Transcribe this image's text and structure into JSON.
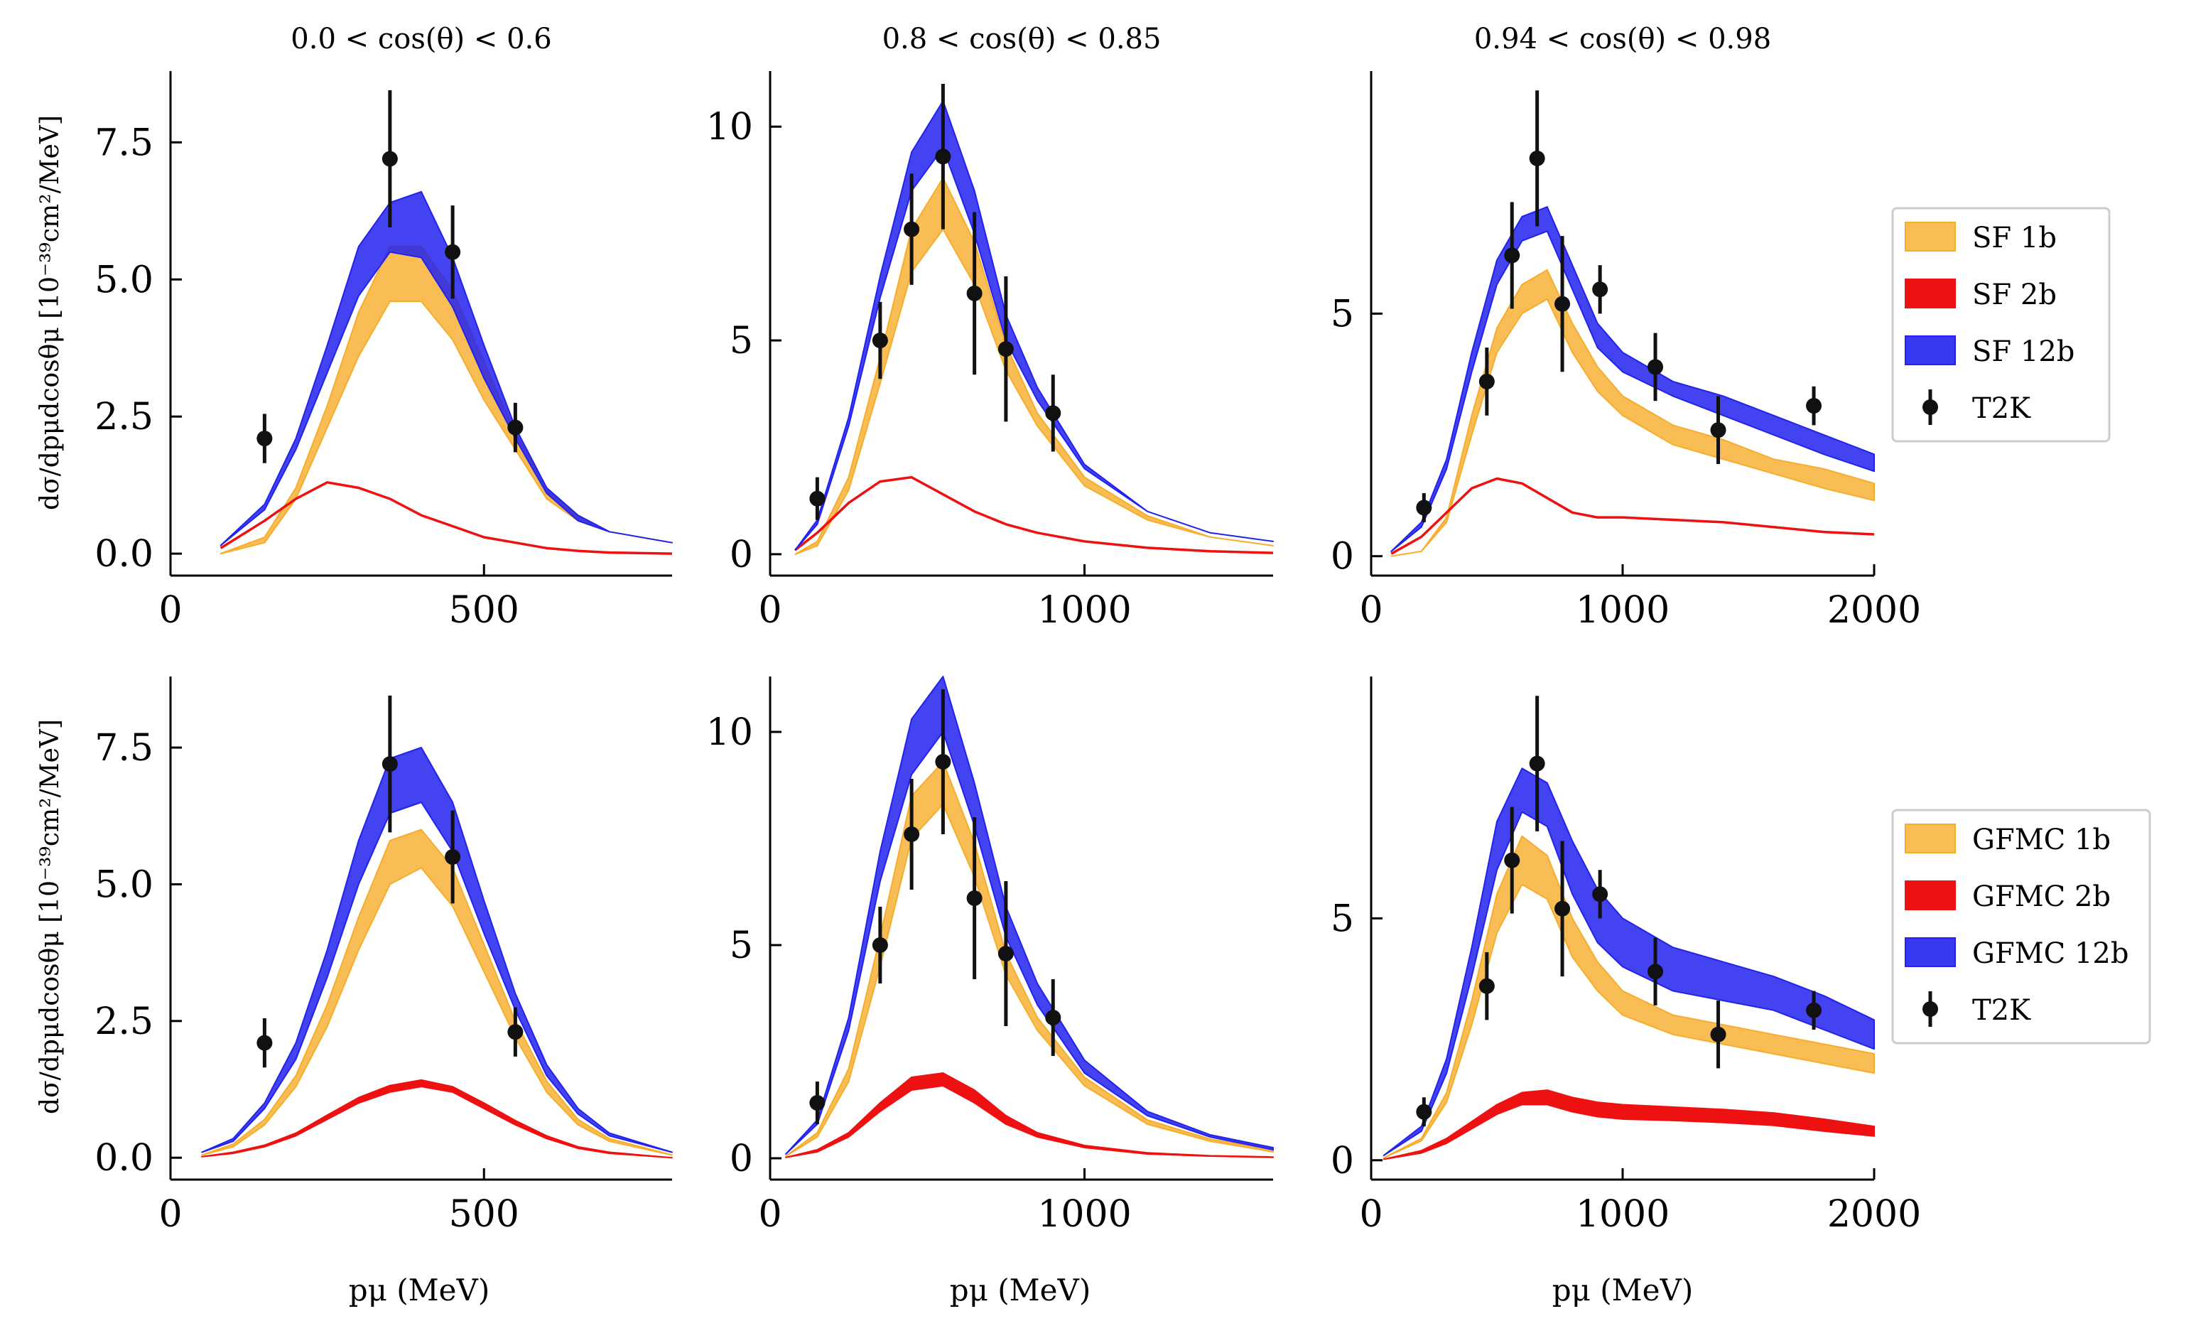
{
  "colors": {
    "sf1b": "#f7ad2c",
    "sf2b": "#ee1111",
    "sf12b": "#2222ee",
    "data": "#111111"
  },
  "ylabel": "dσ/dpμdcosθμ [10⁻³⁹cm²/MeV]",
  "xlabel": "pμ (MeV)",
  "legends": [
    {
      "items": [
        "SF 1b",
        "SF 2b",
        "SF 12b",
        "T2K"
      ]
    },
    {
      "items": [
        "GFMC 1b",
        "GFMC 2b",
        "GFMC 12b",
        "T2K"
      ]
    }
  ],
  "chart_data": [
    {
      "type": "line",
      "row": 0,
      "col": 0,
      "title": "0.0 < cos(θ) < 0.6",
      "xlim": [
        0,
        800
      ],
      "ylim": [
        -0.4,
        8.8
      ],
      "xticks": [
        0,
        500
      ],
      "xtick_labels": [
        "0",
        "500"
      ],
      "yticks": [
        0,
        2.5,
        5,
        7.5
      ],
      "ytick_labels": [
        "0.0",
        "2.5",
        "5.0",
        "7.5"
      ],
      "x": [
        80,
        150,
        200,
        250,
        300,
        350,
        400,
        450,
        500,
        550,
        600,
        650,
        700,
        800
      ],
      "series": [
        {
          "name": "SF 1b",
          "lo": [
            0.0,
            0.2,
            1.0,
            2.3,
            3.6,
            4.6,
            4.6,
            3.9,
            2.8,
            1.9,
            1.0,
            0.6,
            0.4,
            0.2
          ],
          "hi": [
            0.0,
            0.3,
            1.2,
            2.7,
            4.4,
            5.6,
            5.6,
            4.8,
            3.5,
            2.2,
            1.2,
            0.7,
            0.4,
            0.2
          ]
        },
        {
          "name": "SF 2b",
          "values": [
            0.1,
            0.6,
            1.0,
            1.3,
            1.2,
            1.0,
            0.7,
            0.5,
            0.3,
            0.2,
            0.1,
            0.05,
            0.02,
            0.0
          ]
        },
        {
          "name": "SF 12b",
          "lo": [
            0.15,
            0.8,
            1.9,
            3.3,
            4.7,
            5.5,
            5.4,
            4.5,
            3.2,
            2.1,
            1.1,
            0.6,
            0.4,
            0.2
          ],
          "hi": [
            0.15,
            0.9,
            2.1,
            3.8,
            5.6,
            6.4,
            6.6,
            5.4,
            3.8,
            2.3,
            1.2,
            0.7,
            0.4,
            0.2
          ]
        }
      ],
      "data": {
        "x": [
          150,
          350,
          450,
          550
        ],
        "y": [
          2.1,
          7.2,
          5.5,
          2.3
        ],
        "err": [
          0.45,
          1.25,
          0.85,
          0.45
        ]
      }
    },
    {
      "type": "line",
      "row": 0,
      "col": 1,
      "title": "0.8 < cos(θ) < 0.85",
      "xlim": [
        0,
        1600
      ],
      "ylim": [
        -0.5,
        11.3
      ],
      "xticks": [
        0,
        1000
      ],
      "xtick_labels": [
        "0",
        "1000"
      ],
      "yticks": [
        0,
        5,
        10
      ],
      "ytick_labels": [
        "0",
        "5",
        "10"
      ],
      "x": [
        80,
        150,
        250,
        350,
        450,
        550,
        650,
        750,
        850,
        1000,
        1200,
        1400,
        1600
      ],
      "series": [
        {
          "name": "SF 1b",
          "lo": [
            0.0,
            0.2,
            1.5,
            4.0,
            6.6,
            7.6,
            6.3,
            4.3,
            3.0,
            1.6,
            0.8,
            0.4,
            0.2
          ],
          "hi": [
            0.0,
            0.3,
            1.8,
            4.6,
            7.6,
            8.8,
            7.3,
            4.9,
            3.3,
            1.8,
            0.9,
            0.4,
            0.2
          ]
        },
        {
          "name": "SF 2b",
          "values": [
            0.1,
            0.5,
            1.2,
            1.7,
            1.8,
            1.4,
            1.0,
            0.7,
            0.5,
            0.3,
            0.15,
            0.07,
            0.03
          ]
        },
        {
          "name": "SF 12b",
          "lo": [
            0.1,
            0.7,
            3.0,
            6.0,
            8.5,
            9.5,
            7.5,
            5.0,
            3.6,
            2.0,
            1.0,
            0.5,
            0.3
          ],
          "hi": [
            0.1,
            0.8,
            3.2,
            6.5,
            9.4,
            10.6,
            8.5,
            5.6,
            3.9,
            2.1,
            1.0,
            0.5,
            0.3
          ]
        }
      ],
      "data": {
        "x": [
          150,
          350,
          450,
          550,
          650,
          750,
          900
        ],
        "y": [
          1.3,
          5.0,
          7.6,
          9.3,
          6.1,
          4.8,
          3.3
        ],
        "err": [
          0.5,
          0.9,
          1.3,
          1.7,
          1.9,
          1.7,
          0.9
        ]
      }
    },
    {
      "type": "line",
      "row": 0,
      "col": 2,
      "title": "0.94 < cos(θ) < 0.98",
      "xlim": [
        0,
        2000
      ],
      "ylim": [
        -0.4,
        10.0
      ],
      "xticks": [
        0,
        1000,
        2000
      ],
      "xtick_labels": [
        "0",
        "1000",
        "2000"
      ],
      "yticks": [
        0,
        5
      ],
      "ytick_labels": [
        "0",
        "5"
      ],
      "x": [
        80,
        200,
        300,
        400,
        500,
        600,
        700,
        800,
        900,
        1000,
        1200,
        1400,
        1600,
        1800,
        2000
      ],
      "series": [
        {
          "name": "SF 1b",
          "lo": [
            0.0,
            0.1,
            0.7,
            2.5,
            4.2,
            5.0,
            5.3,
            4.2,
            3.4,
            2.9,
            2.3,
            2.0,
            1.7,
            1.4,
            1.15
          ],
          "hi": [
            0.0,
            0.1,
            0.8,
            2.9,
            4.7,
            5.6,
            5.9,
            4.8,
            3.9,
            3.3,
            2.7,
            2.4,
            2.0,
            1.8,
            1.5
          ]
        },
        {
          "name": "SF 2b",
          "values": [
            0.05,
            0.4,
            0.9,
            1.4,
            1.6,
            1.5,
            1.2,
            0.9,
            0.8,
            0.8,
            0.75,
            0.7,
            0.6,
            0.5,
            0.45
          ]
        },
        {
          "name": "SF 12b",
          "lo": [
            0.1,
            0.6,
            1.8,
            3.8,
            5.6,
            6.5,
            6.7,
            5.5,
            4.3,
            3.8,
            3.3,
            2.9,
            2.5,
            2.1,
            1.75
          ],
          "hi": [
            0.1,
            0.7,
            2.0,
            4.2,
            6.1,
            7.0,
            7.2,
            6.0,
            4.8,
            4.2,
            3.6,
            3.3,
            2.9,
            2.5,
            2.1
          ]
        }
      ],
      "data": {
        "x": [
          210,
          460,
          560,
          660,
          760,
          910,
          1130,
          1380,
          1760
        ],
        "y": [
          1.0,
          3.6,
          6.2,
          8.2,
          5.2,
          5.5,
          3.9,
          2.6,
          3.1
        ],
        "err": [
          0.3,
          0.7,
          1.1,
          1.4,
          1.4,
          0.5,
          0.7,
          0.7,
          0.4
        ]
      }
    },
    {
      "type": "line",
      "row": 1,
      "col": 0,
      "title": "",
      "xlim": [
        0,
        800
      ],
      "ylim": [
        -0.4,
        8.8
      ],
      "xticks": [
        0,
        500
      ],
      "xtick_labels": [
        "0",
        "500"
      ],
      "yticks": [
        0,
        2.5,
        5,
        7.5
      ],
      "ytick_labels": [
        "0.0",
        "2.5",
        "5.0",
        "7.5"
      ],
      "x": [
        50,
        100,
        150,
        200,
        250,
        300,
        350,
        400,
        450,
        500,
        550,
        600,
        650,
        700,
        800
      ],
      "series": [
        {
          "name": "GFMC 1b",
          "lo": [
            0.05,
            0.2,
            0.6,
            1.3,
            2.4,
            3.8,
            5.0,
            5.3,
            4.6,
            3.4,
            2.2,
            1.2,
            0.6,
            0.3,
            0.05
          ],
          "hi": [
            0.05,
            0.25,
            0.7,
            1.5,
            2.8,
            4.4,
            5.8,
            6.0,
            5.3,
            3.9,
            2.5,
            1.4,
            0.7,
            0.35,
            0.05
          ]
        },
        {
          "name": "GFMC 2b",
          "lo": [
            0.02,
            0.08,
            0.2,
            0.4,
            0.7,
            1.0,
            1.2,
            1.3,
            1.2,
            0.9,
            0.6,
            0.35,
            0.17,
            0.08,
            0.0
          ],
          "hi": [
            0.02,
            0.1,
            0.23,
            0.45,
            0.78,
            1.1,
            1.32,
            1.42,
            1.3,
            1.0,
            0.68,
            0.4,
            0.2,
            0.1,
            0.0
          ]
        },
        {
          "name": "GFMC 12b",
          "lo": [
            0.1,
            0.3,
            0.9,
            1.8,
            3.3,
            5.0,
            6.3,
            6.5,
            5.6,
            4.1,
            2.7,
            1.5,
            0.8,
            0.4,
            0.1
          ],
          "hi": [
            0.1,
            0.35,
            1.0,
            2.1,
            3.8,
            5.8,
            7.3,
            7.5,
            6.5,
            4.7,
            3.0,
            1.7,
            0.9,
            0.45,
            0.1
          ]
        }
      ],
      "data": {
        "x": [
          150,
          350,
          450,
          550
        ],
        "y": [
          2.1,
          7.2,
          5.5,
          2.3
        ],
        "err": [
          0.45,
          1.25,
          0.85,
          0.45
        ]
      }
    },
    {
      "type": "line",
      "row": 1,
      "col": 1,
      "title": "",
      "xlim": [
        0,
        1600
      ],
      "ylim": [
        -0.5,
        11.3
      ],
      "xticks": [
        0,
        1000
      ],
      "xtick_labels": [
        "0",
        "1000"
      ],
      "yticks": [
        0,
        5,
        10
      ],
      "ytick_labels": [
        "0",
        "5",
        "10"
      ],
      "x": [
        50,
        150,
        250,
        350,
        450,
        550,
        650,
        750,
        850,
        1000,
        1200,
        1400,
        1600
      ],
      "series": [
        {
          "name": "GFMC 1b",
          "lo": [
            0.05,
            0.5,
            1.8,
            4.5,
            7.5,
            8.3,
            6.6,
            4.3,
            3.0,
            1.7,
            0.8,
            0.4,
            0.15
          ],
          "hi": [
            0.05,
            0.6,
            2.1,
            5.2,
            8.5,
            9.3,
            7.4,
            4.8,
            3.3,
            1.9,
            0.9,
            0.45,
            0.2
          ]
        },
        {
          "name": "GFMC 2b",
          "lo": [
            0.02,
            0.15,
            0.5,
            1.1,
            1.6,
            1.7,
            1.3,
            0.8,
            0.5,
            0.25,
            0.1,
            0.05,
            0.02
          ],
          "hi": [
            0.02,
            0.2,
            0.6,
            1.3,
            1.9,
            2.0,
            1.6,
            1.0,
            0.6,
            0.3,
            0.13,
            0.06,
            0.03
          ]
        },
        {
          "name": "GFMC 12b",
          "lo": [
            0.1,
            0.8,
            3.0,
            6.5,
            9.0,
            10.0,
            7.8,
            5.2,
            3.6,
            2.0,
            1.0,
            0.5,
            0.2
          ],
          "hi": [
            0.1,
            0.9,
            3.3,
            7.2,
            10.3,
            11.3,
            8.8,
            5.9,
            4.1,
            2.3,
            1.1,
            0.55,
            0.25
          ]
        }
      ],
      "data": {
        "x": [
          150,
          350,
          450,
          550,
          650,
          750,
          900
        ],
        "y": [
          1.3,
          5.0,
          7.6,
          9.3,
          6.1,
          4.8,
          3.3
        ],
        "err": [
          0.5,
          0.9,
          1.3,
          1.7,
          1.9,
          1.7,
          0.9
        ]
      }
    },
    {
      "type": "line",
      "row": 1,
      "col": 2,
      "title": "",
      "xlim": [
        0,
        2000
      ],
      "ylim": [
        -0.4,
        10.0
      ],
      "xticks": [
        0,
        1000,
        2000
      ],
      "xtick_labels": [
        "0",
        "1000",
        "2000"
      ],
      "yticks": [
        0,
        5
      ],
      "ytick_labels": [
        "0",
        "5"
      ],
      "x": [
        50,
        200,
        300,
        400,
        500,
        600,
        700,
        800,
        900,
        1000,
        1200,
        1400,
        1600,
        1800,
        2000
      ],
      "series": [
        {
          "name": "GFMC 1b",
          "lo": [
            0.05,
            0.4,
            1.2,
            2.8,
            4.7,
            5.7,
            5.4,
            4.2,
            3.5,
            3.0,
            2.6,
            2.4,
            2.2,
            2.0,
            1.8
          ],
          "hi": [
            0.05,
            0.45,
            1.4,
            3.3,
            5.5,
            6.7,
            6.3,
            5.0,
            4.1,
            3.5,
            3.0,
            2.8,
            2.6,
            2.4,
            2.2
          ]
        },
        {
          "name": "GFMC 2b",
          "lo": [
            0.02,
            0.15,
            0.35,
            0.65,
            0.95,
            1.15,
            1.15,
            1.0,
            0.9,
            0.85,
            0.82,
            0.78,
            0.72,
            0.6,
            0.5
          ],
          "hi": [
            0.02,
            0.2,
            0.45,
            0.8,
            1.15,
            1.4,
            1.45,
            1.3,
            1.2,
            1.15,
            1.1,
            1.05,
            0.98,
            0.85,
            0.7
          ]
        },
        {
          "name": "GFMC 12b",
          "lo": [
            0.1,
            0.6,
            1.8,
            3.8,
            6.0,
            7.2,
            6.9,
            5.5,
            4.5,
            4.0,
            3.5,
            3.3,
            3.1,
            2.7,
            2.3
          ],
          "hi": [
            0.1,
            0.7,
            2.1,
            4.4,
            7.0,
            8.1,
            7.8,
            6.6,
            5.6,
            5.0,
            4.4,
            4.1,
            3.8,
            3.4,
            2.9
          ]
        }
      ],
      "data": {
        "x": [
          210,
          460,
          560,
          660,
          760,
          910,
          1130,
          1380,
          1760
        ],
        "y": [
          1.0,
          3.6,
          6.2,
          8.2,
          5.2,
          5.5,
          3.9,
          2.6,
          3.1
        ],
        "err": [
          0.3,
          0.7,
          1.1,
          1.4,
          1.4,
          0.5,
          0.7,
          0.7,
          0.4
        ]
      }
    }
  ]
}
